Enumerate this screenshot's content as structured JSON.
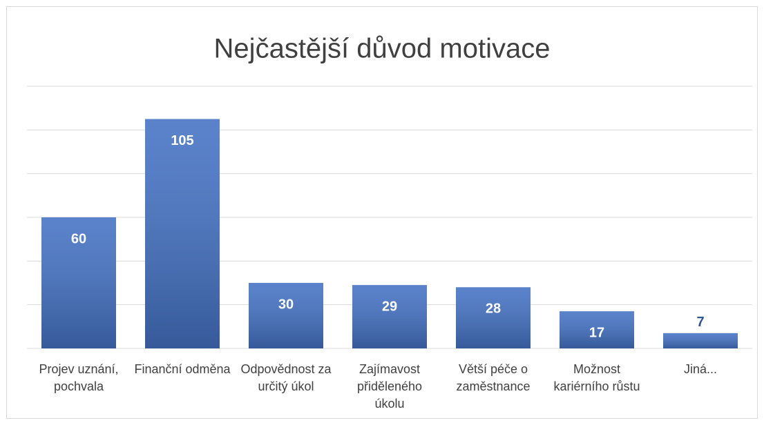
{
  "chart_data": {
    "type": "bar",
    "title": "Nejčastější důvod motivace",
    "categories": [
      "Projev uznání, pochvala",
      "Finanční odměna",
      "Odpovědnost za určitý úkol",
      "Zajímavost přiděleného úkolu",
      "Větší péče o zaměstnance",
      "Možnost kariérního růstu",
      "Jiná..."
    ],
    "values": [
      60,
      105,
      30,
      29,
      28,
      17,
      7
    ],
    "color": "#4472c4",
    "ylim": [
      0,
      120
    ],
    "yticks": [
      0,
      20,
      40,
      60,
      80,
      100,
      120
    ],
    "grid": true
  }
}
